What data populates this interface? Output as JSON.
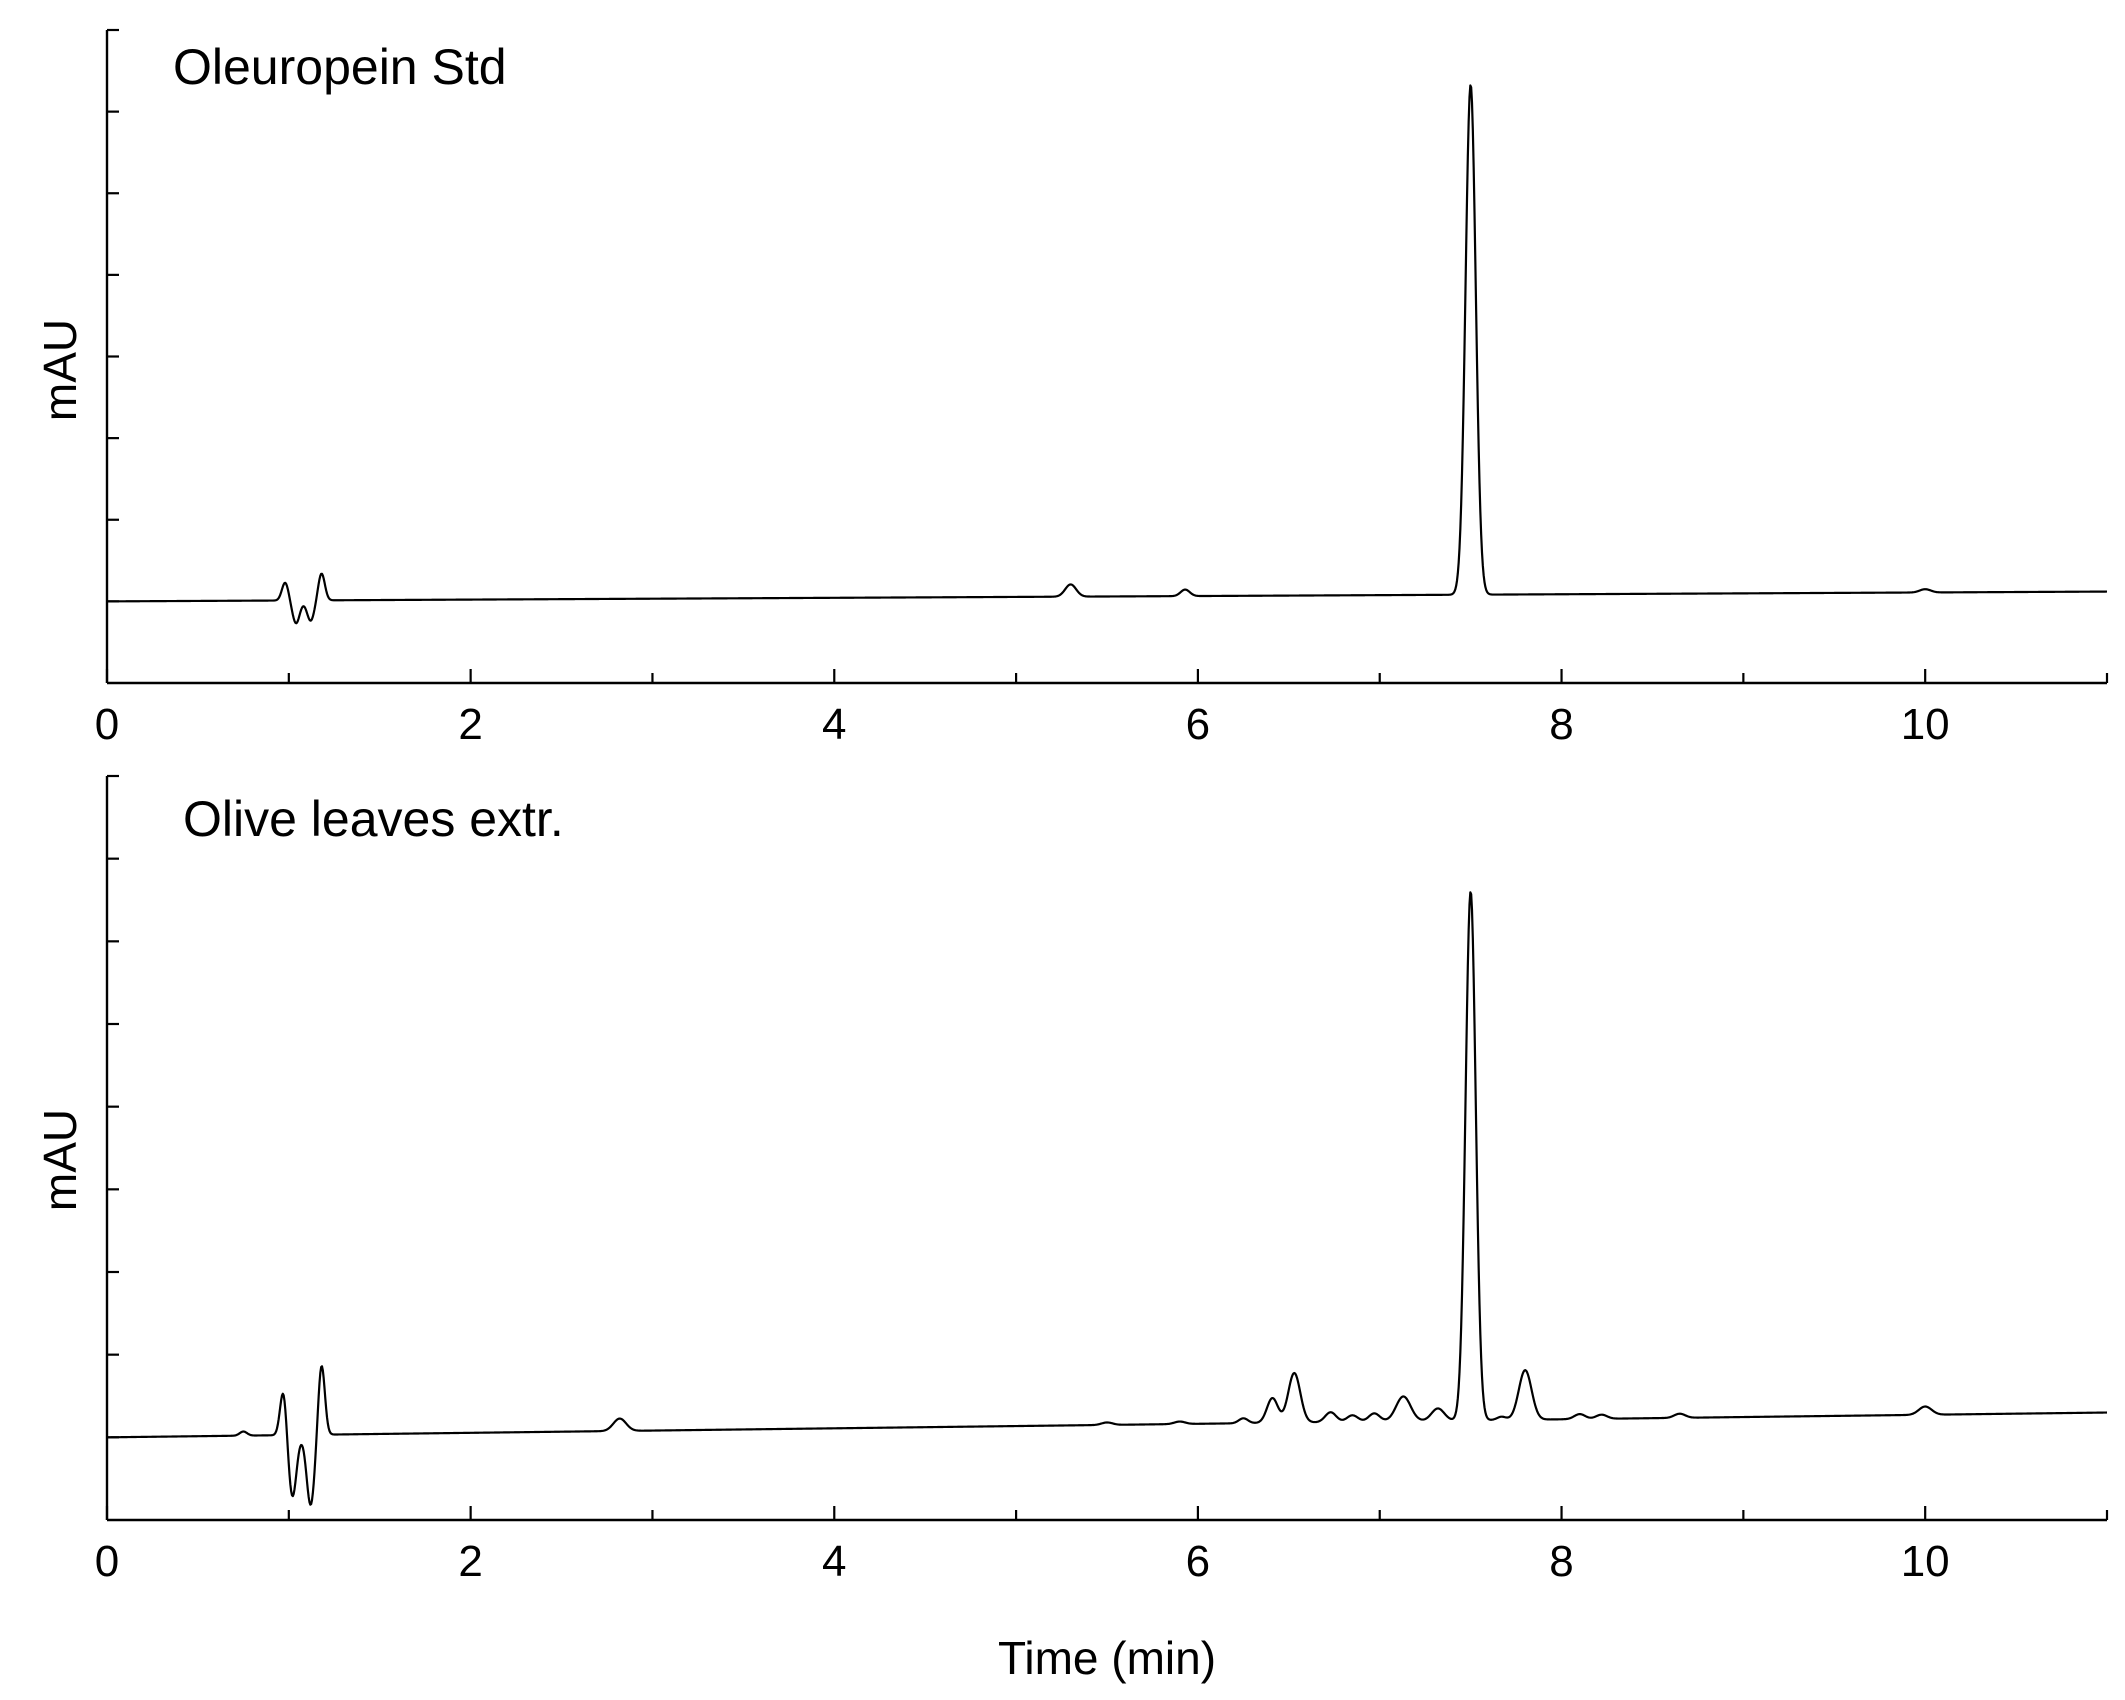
{
  "chart_data": [
    {
      "type": "line",
      "title": "Oleuropein Std",
      "ylabel": "mAU",
      "xlabel": "",
      "xlim": [
        0,
        11
      ],
      "ylim": [
        -1,
        7
      ],
      "x_ticks": [
        0,
        2,
        4,
        6,
        8,
        10
      ],
      "x_tick_labels": [
        "0",
        "2",
        "4",
        "6",
        "8",
        "10"
      ],
      "x_minor_ticks": [
        1,
        3,
        5,
        7,
        9,
        11
      ],
      "y_ticks": [
        0,
        1,
        2,
        3,
        4,
        5,
        6,
        7
      ],
      "y_tick_labels": [],
      "grid": false,
      "baseline": {
        "start": [
          0,
          0.0
        ],
        "end": [
          11,
          0.12
        ]
      },
      "peaks": [
        {
          "t": 0.98,
          "h": 0.22,
          "w": 0.018
        },
        {
          "t": 1.04,
          "h": -0.28,
          "w": 0.02
        },
        {
          "t": 1.12,
          "h": -0.25,
          "w": 0.02
        },
        {
          "t": 1.18,
          "h": 0.33,
          "w": 0.018
        },
        {
          "t": 5.3,
          "h": 0.15,
          "w": 0.03
        },
        {
          "t": 5.93,
          "h": 0.08,
          "w": 0.025
        },
        {
          "t": 7.5,
          "h": 6.25,
          "w": 0.028
        },
        {
          "t": 10.0,
          "h": 0.04,
          "w": 0.03
        }
      ]
    },
    {
      "type": "line",
      "title": "Olive leaves extr.",
      "ylabel": "mAU",
      "xlabel": "Time (min)",
      "xlim": [
        0,
        11
      ],
      "ylim": [
        -1,
        8
      ],
      "x_ticks": [
        0,
        2,
        4,
        6,
        8,
        10
      ],
      "x_tick_labels": [
        "0",
        "2",
        "4",
        "6",
        "8",
        "10"
      ],
      "x_minor_ticks": [
        1,
        3,
        5,
        7,
        9,
        11
      ],
      "y_ticks": [
        0,
        1,
        2,
        3,
        4,
        5,
        6,
        7,
        8
      ],
      "y_tick_labels": [],
      "grid": false,
      "baseline": {
        "start": [
          0,
          0.0
        ],
        "end": [
          11,
          0.3
        ]
      },
      "peaks": [
        {
          "t": 0.75,
          "h": 0.05,
          "w": 0.02
        },
        {
          "t": 0.97,
          "h": 0.55,
          "w": 0.018
        },
        {
          "t": 1.02,
          "h": -0.75,
          "w": 0.022
        },
        {
          "t": 1.12,
          "h": -0.85,
          "w": 0.022
        },
        {
          "t": 1.18,
          "h": 0.85,
          "w": 0.018
        },
        {
          "t": 2.82,
          "h": 0.15,
          "w": 0.035
        },
        {
          "t": 5.5,
          "h": 0.03,
          "w": 0.03
        },
        {
          "t": 5.9,
          "h": 0.03,
          "w": 0.03
        },
        {
          "t": 6.25,
          "h": 0.06,
          "w": 0.025
        },
        {
          "t": 6.41,
          "h": 0.3,
          "w": 0.03
        },
        {
          "t": 6.53,
          "h": 0.6,
          "w": 0.033
        },
        {
          "t": 6.73,
          "h": 0.12,
          "w": 0.03
        },
        {
          "t": 6.85,
          "h": 0.08,
          "w": 0.03
        },
        {
          "t": 6.97,
          "h": 0.1,
          "w": 0.03
        },
        {
          "t": 7.13,
          "h": 0.3,
          "w": 0.04
        },
        {
          "t": 7.32,
          "h": 0.15,
          "w": 0.035
        },
        {
          "t": 7.5,
          "h": 6.4,
          "w": 0.028
        },
        {
          "t": 7.67,
          "h": 0.04,
          "w": 0.025
        },
        {
          "t": 7.8,
          "h": 0.6,
          "w": 0.035
        },
        {
          "t": 8.1,
          "h": 0.06,
          "w": 0.03
        },
        {
          "t": 8.22,
          "h": 0.05,
          "w": 0.03
        },
        {
          "t": 8.65,
          "h": 0.05,
          "w": 0.03
        },
        {
          "t": 10.0,
          "h": 0.1,
          "w": 0.035
        }
      ]
    }
  ]
}
